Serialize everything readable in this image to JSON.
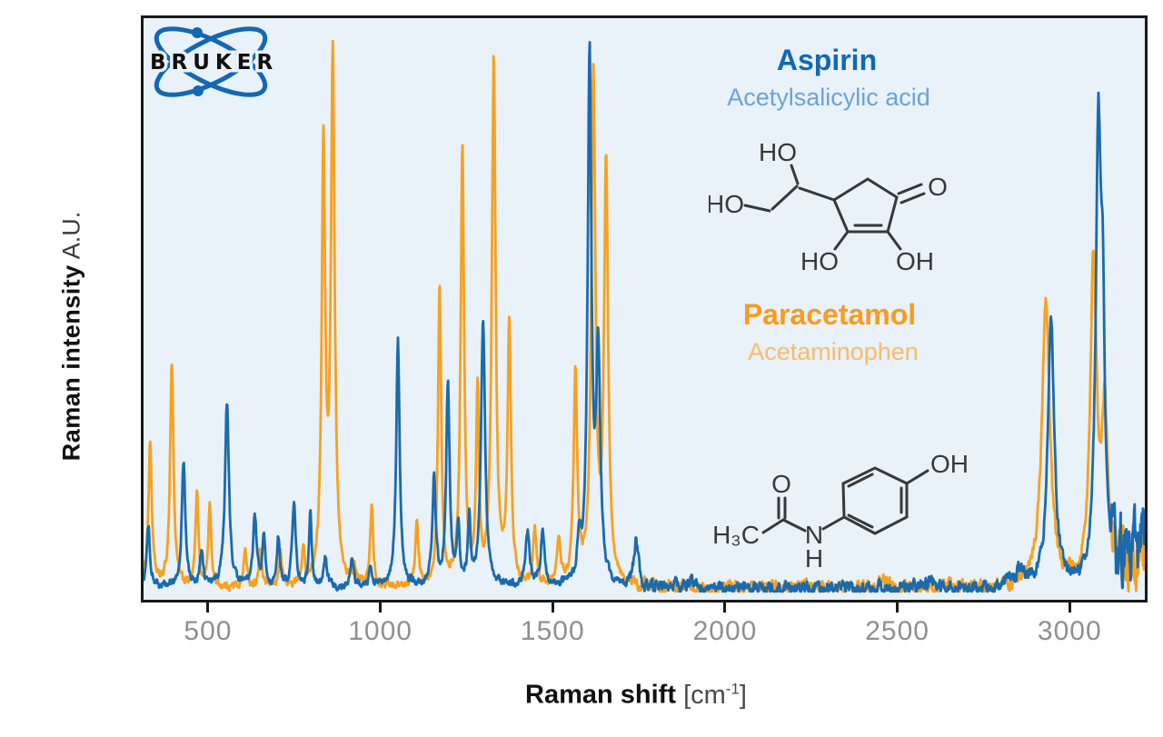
{
  "brand": {
    "logo_text": "BRUKER",
    "logo_blue": "#1268b3"
  },
  "axes": {
    "y_label_bold": "Raman intensity",
    "y_label_light": " A.U.",
    "x_label_bold": "Raman shift",
    "x_label_open": " [cm",
    "x_label_sup": "-1",
    "x_label_close": "]",
    "x_ticks": [
      500,
      1000,
      1500,
      2000,
      2500,
      3000
    ]
  },
  "legend": {
    "aspirin_name": "Aspirin",
    "aspirin_subtitle": "Acetylsalicylic acid",
    "aspirin_color": "#1268b3",
    "aspirin_subtitle_color": "#6aa3d8",
    "paracetamol_name": "Paracetamol",
    "paracetamol_subtitle": "Acetaminophen",
    "paracetamol_color": "#f89c1c",
    "paracetamol_subtitle_color": "#f9bc69"
  },
  "structures": {
    "aspirin": {
      "ho_top": "HO",
      "ho_left": "HO",
      "o_ketone": "O",
      "ho_bottom_left": "HO",
      "oh_bottom_right": "OH"
    },
    "paracetamol": {
      "h3c": "H₃C",
      "o_carbonyl": "O",
      "n": "N",
      "h": "H",
      "oh": "OH"
    }
  },
  "chart_data": {
    "type": "line",
    "title": "",
    "xlabel": "Raman shift [cm-1]",
    "ylabel": "Raman intensity A.U.",
    "x_range": [
      313,
      3218
    ],
    "ylim": [
      0,
      1.05
    ],
    "grid": false,
    "legend_position": "upper right",
    "baseline": 0.008,
    "noise_regions": [
      {
        "from": 313,
        "to": 1720,
        "amp": 0.012
      },
      {
        "from": 1720,
        "to": 2860,
        "amp": 0.02
      },
      {
        "from": 2860,
        "to": 3120,
        "amp": 0.022
      },
      {
        "from": 3120,
        "to": 3218,
        "amp": 0.1
      }
    ],
    "series": [
      {
        "name": "Aspirin",
        "color": "#1a6aad",
        "peaks_format": [
          "raman_shift_cm-1",
          "relative_intensity",
          "half_width_cm-1"
        ],
        "peaks": [
          [
            327,
            0.11,
            6
          ],
          [
            429,
            0.23,
            6
          ],
          [
            481,
            0.06,
            6
          ],
          [
            555,
            0.335,
            7
          ],
          [
            636,
            0.13,
            6
          ],
          [
            662,
            0.09,
            5
          ],
          [
            704,
            0.085,
            5
          ],
          [
            749,
            0.155,
            6
          ],
          [
            797,
            0.13,
            5
          ],
          [
            840,
            0.05,
            6
          ],
          [
            918,
            0.05,
            6
          ],
          [
            972,
            0.04,
            5
          ],
          [
            1051,
            0.455,
            6
          ],
          [
            1156,
            0.2,
            6
          ],
          [
            1196,
            0.37,
            6
          ],
          [
            1226,
            0.1,
            5
          ],
          [
            1258,
            0.12,
            5
          ],
          [
            1298,
            0.485,
            7
          ],
          [
            1427,
            0.1,
            7
          ],
          [
            1471,
            0.1,
            7
          ],
          [
            1577,
            0.08,
            6
          ],
          [
            1607,
            0.97,
            6.5
          ],
          [
            1632,
            0.42,
            7
          ],
          [
            1742,
            0.08,
            8
          ],
          [
            1905,
            0.015,
            10
          ],
          [
            2600,
            0.012,
            12
          ],
          [
            2856,
            0.03,
            15
          ],
          [
            2946,
            0.5,
            11
          ],
          [
            3083,
            0.8,
            9
          ],
          [
            3096,
            0.4,
            7
          ],
          [
            3150,
            0.04,
            20
          ],
          [
            3190,
            0.05,
            15
          ],
          [
            3215,
            0.07,
            10
          ]
        ]
      },
      {
        "name": "Paracetamol",
        "color": "#f7a11f",
        "peaks_format": [
          "raman_shift_cm-1",
          "relative_intensity",
          "half_width_cm-1"
        ],
        "peaks": [
          [
            332,
            0.263,
            6
          ],
          [
            395,
            0.41,
            6
          ],
          [
            468,
            0.17,
            5
          ],
          [
            505,
            0.15,
            5
          ],
          [
            608,
            0.07,
            5
          ],
          [
            652,
            0.065,
            5
          ],
          [
            710,
            0.06,
            5
          ],
          [
            776,
            0.065,
            5
          ],
          [
            835,
            0.8,
            6
          ],
          [
            862,
            0.97,
            6.5
          ],
          [
            925,
            0.03,
            5
          ],
          [
            975,
            0.15,
            5
          ],
          [
            1106,
            0.115,
            5
          ],
          [
            1172,
            0.55,
            5.5
          ],
          [
            1238,
            0.8,
            6
          ],
          [
            1282,
            0.35,
            5
          ],
          [
            1329,
            0.96,
            6.5
          ],
          [
            1374,
            0.477,
            6
          ],
          [
            1448,
            0.1,
            6
          ],
          [
            1518,
            0.08,
            6
          ],
          [
            1566,
            0.383,
            6
          ],
          [
            1618,
            0.935,
            7
          ],
          [
            1655,
            0.76,
            7
          ],
          [
            2455,
            0.018,
            12
          ],
          [
            2931,
            0.52,
            14
          ],
          [
            3069,
            0.588,
            11
          ],
          [
            3102,
            0.3,
            10
          ],
          [
            3145,
            0.05,
            15
          ],
          [
            3185,
            0.06,
            12
          ],
          [
            3215,
            0.05,
            10
          ]
        ]
      }
    ]
  }
}
